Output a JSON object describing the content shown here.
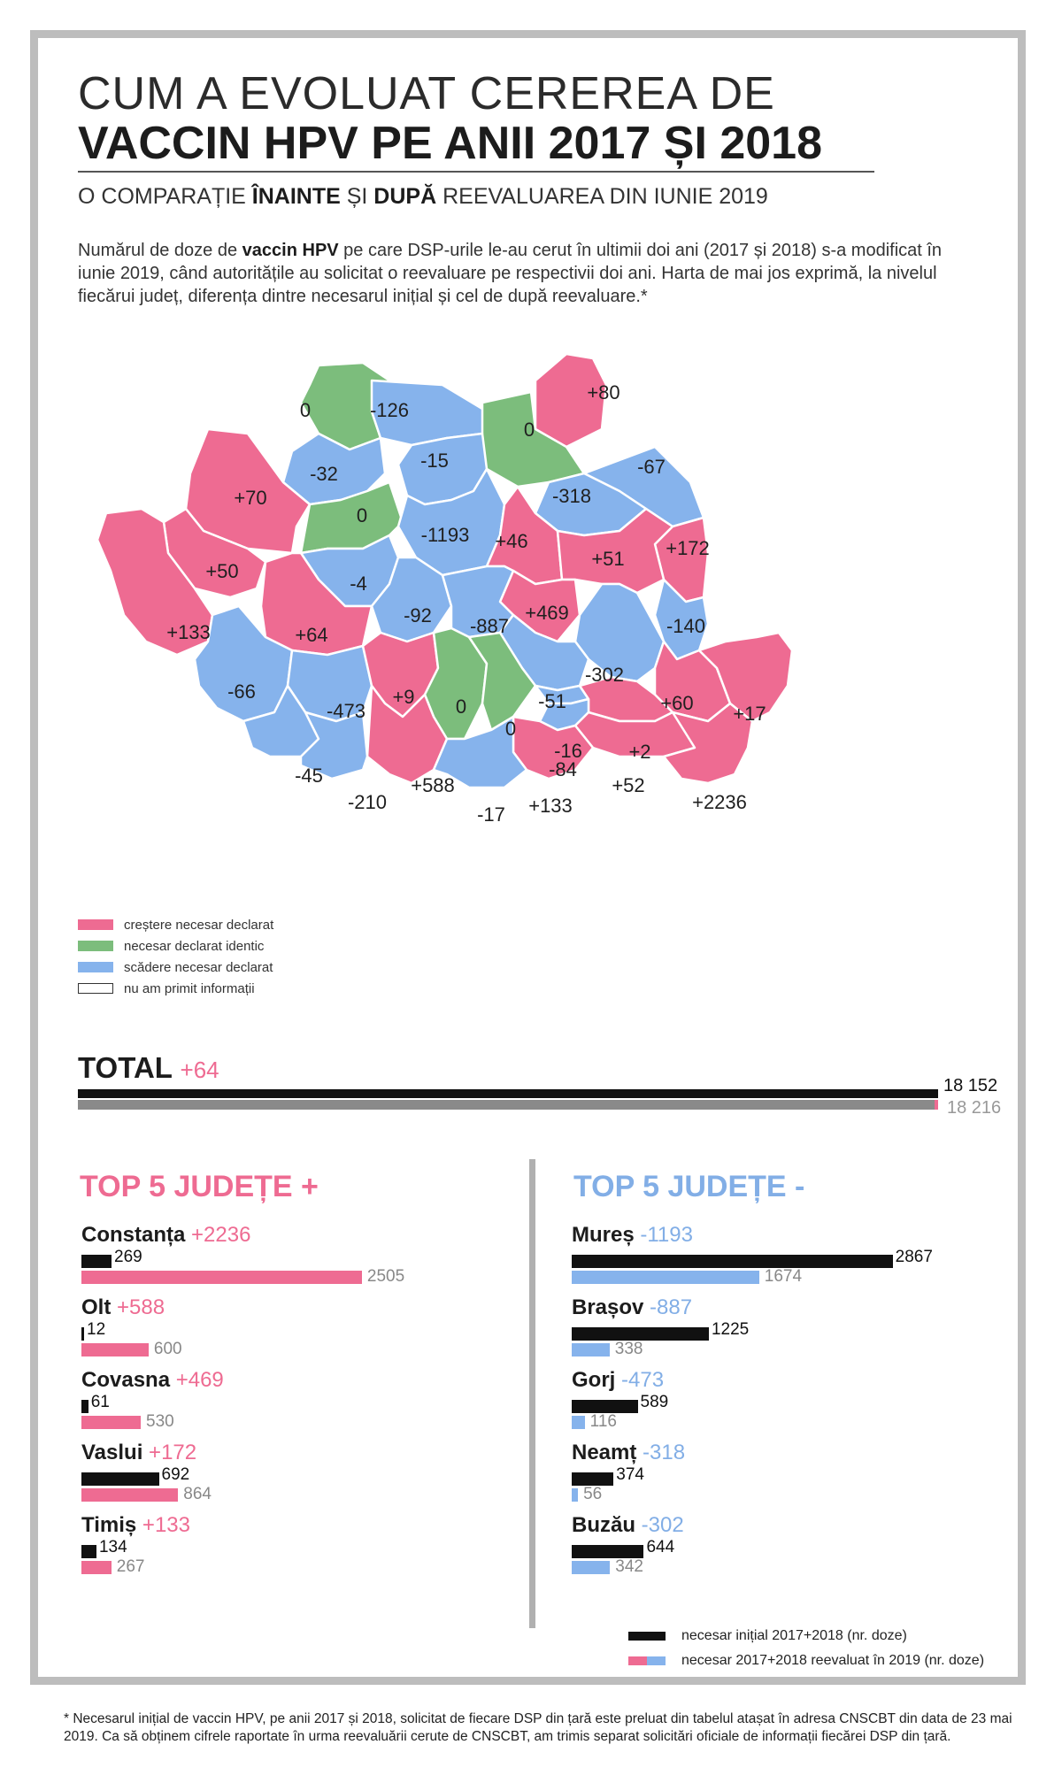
{
  "header": {
    "title_line1": "CUM A EVOLUAT CEREREA DE",
    "title_line2": "VACCIN HPV PE ANII  2017 ȘI 2018",
    "subtitle_a": "O COMPARAȚIE ",
    "subtitle_b": "ÎNAINTE",
    "subtitle_c": " ȘI ",
    "subtitle_d": "DUPĂ",
    "subtitle_e": " REEVALUAREA DIN IUNIE 2019",
    "intro_a": "Numărul de doze de ",
    "intro_b": "vaccin HPV",
    "intro_c": " pe care DSP-urile le-au cerut în ultimii doi ani (2017 și 2018) s-a modificat în iunie 2019, când autoritățile au solicitat o reevaluare pe respectivii doi ani. Harta de mai jos exprimă, la nivelul fiecărui județ, diferența dintre necesarul inițial și cel de după reevaluare.*"
  },
  "colors": {
    "increase": "#ee6b92",
    "identical": "#7cbd7c",
    "decrease": "#86b3ec",
    "initial": "#111111",
    "reevaluated": "#ee6b92"
  },
  "legend": [
    {
      "label": "creștere necesar declarat",
      "color": "#ee6b92"
    },
    {
      "label": "necesar declarat identic",
      "color": "#7cbd7c"
    },
    {
      "label": "scădere necesar declarat",
      "color": "#86b3ec"
    },
    {
      "label": "nu am primit informații",
      "color": "#ffffff"
    }
  ],
  "map_labels": [
    "0",
    "-126",
    "+80",
    "0",
    "-32",
    "-15",
    "-67",
    "+70",
    "0",
    "-318",
    "-1193",
    "+46",
    "+172",
    "+51",
    "+50",
    "-4",
    "+469",
    "-92",
    "-887",
    "-140",
    "+133",
    "+64",
    "-302",
    "-66",
    "-473",
    "+9",
    "+60",
    "0",
    "-51",
    "+17",
    "0",
    "-16",
    "+2",
    "-84",
    "-45",
    "+588",
    "+52",
    "-210",
    "+133",
    "-17",
    "+2236"
  ],
  "total": {
    "label": "TOTAL",
    "delta": "+64",
    "initial_label": "18 152",
    "reevaluated_label": "18 216"
  },
  "chart_data": [
    {
      "type": "bar",
      "title": "TOP 5 JUDEȚE +",
      "categories": [
        "Constanța",
        "Olt",
        "Covasna",
        "Vaslui",
        "Timiș"
      ],
      "deltas": [
        "+2236",
        "+588",
        "+469",
        "+172",
        "+133"
      ],
      "series": [
        {
          "name": "necesar inițial 2017+2018 (nr. doze)",
          "values": [
            269,
            12,
            61,
            692,
            134
          ]
        },
        {
          "name": "necesar 2017+2018 reevaluat în 2019 (nr. doze)",
          "values": [
            2505,
            600,
            530,
            864,
            267
          ]
        }
      ]
    },
    {
      "type": "bar",
      "title": "TOP 5 JUDEȚE -",
      "categories": [
        "Mureș",
        "Brașov",
        "Gorj",
        "Neamț",
        "Buzău"
      ],
      "deltas": [
        "-1193",
        "-887",
        "-473",
        "-318",
        "-302"
      ],
      "series": [
        {
          "name": "necesar inițial 2017+2018 (nr. doze)",
          "values": [
            2867,
            1225,
            589,
            374,
            644
          ]
        },
        {
          "name": "necesar 2017+2018 reevaluat în 2019 (nr. doze)",
          "values": [
            1674,
            338,
            116,
            56,
            342
          ]
        }
      ]
    },
    {
      "type": "bar",
      "title": "TOTAL",
      "categories": [
        "TOTAL"
      ],
      "series": [
        {
          "name": "necesar inițial 2017+2018 (nr. doze)",
          "values": [
            18152
          ]
        },
        {
          "name": "necesar 2017+2018 reevaluat în 2019 (nr. doze)",
          "values": [
            18216
          ]
        }
      ]
    }
  ],
  "bar_key": {
    "initial": "necesar inițial 2017+2018 (nr. doze)",
    "reevaluated": "necesar 2017+2018 reevaluat în 2019 (nr. doze)"
  },
  "footnote": "* Necesarul inițial de vaccin HPV, pe anii 2017 și 2018, solicitat de fiecare DSP din țară este preluat din tabelul atașat în adresa CNSCBT din data de 23 mai 2019. Ca să obținem cifrele raportate în urma reevaluării cerute de CNSCBT, am trimis separat solicitări oficiale de informații fiecărei DSP din țară."
}
